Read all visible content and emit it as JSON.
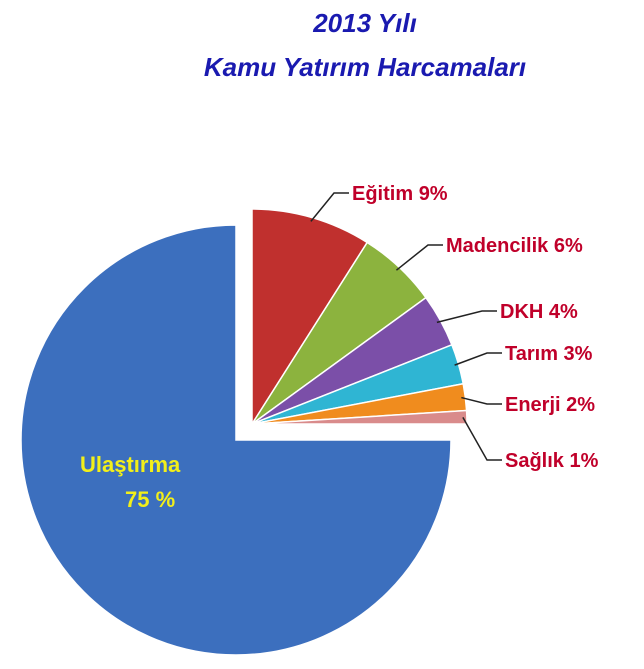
{
  "chart_data": {
    "type": "pie",
    "title": "2013 Yılı",
    "subtitle": "Kamu Yatırım Harcamaları",
    "categories": [
      "Eğitim",
      "Madencilik",
      "DKH",
      "Tarım",
      "Enerji",
      "Sağlık",
      "Ulaştırma"
    ],
    "values": [
      9,
      6,
      4,
      3,
      2,
      1,
      75
    ],
    "value_labels": [
      "9%",
      "6%",
      "4%",
      "3%",
      "2%",
      "1%",
      "75 %"
    ],
    "colors": [
      "#c0302e",
      "#8cb33e",
      "#7b4fa8",
      "#2fb5d3",
      "#f08c1e",
      "#d98b8b",
      "#3c6fbe"
    ]
  }
}
